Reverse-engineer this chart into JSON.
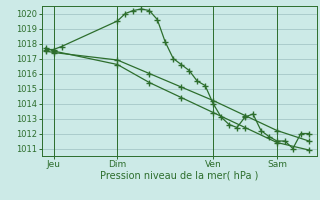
{
  "background_color": "#cceae7",
  "grid_color": "#aacccc",
  "line_color": "#2d6e2d",
  "marker_color": "#2d6e2d",
  "xlabel": "Pression niveau de la mer( hPa )",
  "ylim": [
    1010.5,
    1020.5
  ],
  "xlim": [
    -0.5,
    34
  ],
  "day_labels": [
    "Jeu",
    "Dim",
    "Ven",
    "Sam"
  ],
  "day_positions": [
    1,
    9,
    21,
    29
  ],
  "series1_x": [
    0,
    1,
    2,
    9,
    10,
    11,
    12,
    13,
    14,
    15,
    16,
    17,
    18,
    19,
    20,
    21,
    22,
    23,
    24,
    25,
    26,
    27,
    28,
    29,
    30,
    31,
    32,
    33
  ],
  "series1_y": [
    1017.6,
    1017.6,
    1017.8,
    1019.5,
    1020.0,
    1020.2,
    1020.3,
    1020.2,
    1019.6,
    1018.1,
    1017.0,
    1016.6,
    1016.2,
    1015.5,
    1015.2,
    1014.0,
    1013.1,
    1012.6,
    1012.4,
    1013.1,
    1013.3,
    1012.2,
    1011.8,
    1011.5,
    1011.5,
    1011.0,
    1012.0,
    1012.0
  ],
  "series2_x": [
    0,
    1,
    9,
    13,
    17,
    21,
    25,
    29,
    33
  ],
  "series2_y": [
    1017.5,
    1017.4,
    1016.9,
    1016.0,
    1015.1,
    1014.2,
    1013.2,
    1012.2,
    1011.5
  ],
  "series3_x": [
    0,
    1,
    9,
    13,
    17,
    21,
    25,
    29,
    33
  ],
  "series3_y": [
    1017.7,
    1017.5,
    1016.6,
    1015.4,
    1014.4,
    1013.4,
    1012.4,
    1011.4,
    1010.9
  ]
}
